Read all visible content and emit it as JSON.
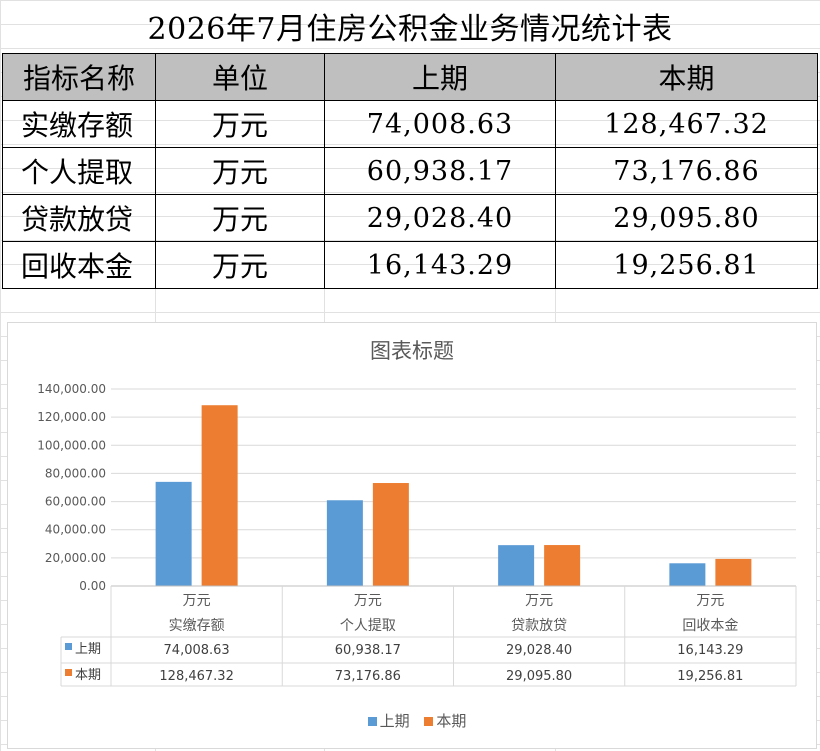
{
  "title": "2026年7月住房公积金业务情况统计表",
  "table": {
    "headers": [
      "指标名称",
      "单位",
      "上期",
      "本期"
    ],
    "rows": [
      {
        "name": "实缴存额",
        "unit": "万元",
        "prev": "74,008.63",
        "curr": "128,467.32"
      },
      {
        "name": "个人提取",
        "unit": "万元",
        "prev": "60,938.17",
        "curr": "73,176.86"
      },
      {
        "name": "贷款放贷",
        "unit": "万元",
        "prev": "29,028.40",
        "curr": "29,095.80"
      },
      {
        "name": "回收本金",
        "unit": "万元",
        "prev": "16,143.29",
        "curr": "19,256.81"
      }
    ]
  },
  "colors": {
    "prev": "#5b9bd5",
    "curr": "#ed7d31",
    "header_bg": "#bfbfbf"
  },
  "chart_data": {
    "type": "bar",
    "title": "图表标题",
    "categories": [
      {
        "unit": "万元",
        "name": "实缴存额"
      },
      {
        "unit": "万元",
        "name": "个人提取"
      },
      {
        "unit": "万元",
        "name": "贷款放贷"
      },
      {
        "unit": "万元",
        "name": "回收本金"
      }
    ],
    "series": [
      {
        "name": "上期",
        "values": [
          74008.63,
          60938.17,
          29028.4,
          16143.29
        ],
        "labels": [
          "74,008.63",
          "60,938.17",
          "29,028.40",
          "16,143.29"
        ]
      },
      {
        "name": "本期",
        "values": [
          128467.32,
          73176.86,
          29095.8,
          19256.81
        ],
        "labels": [
          "128,467.32",
          "73,176.86",
          "29,095.80",
          "19,256.81"
        ]
      }
    ],
    "ylim": [
      0,
      140000
    ],
    "yticks": [
      "0.00",
      "20,000.00",
      "40,000.00",
      "60,000.00",
      "80,000.00",
      "100,000.00",
      "120,000.00",
      "140,000.00"
    ],
    "grid": true,
    "legend": "bottom",
    "data_table": true
  }
}
